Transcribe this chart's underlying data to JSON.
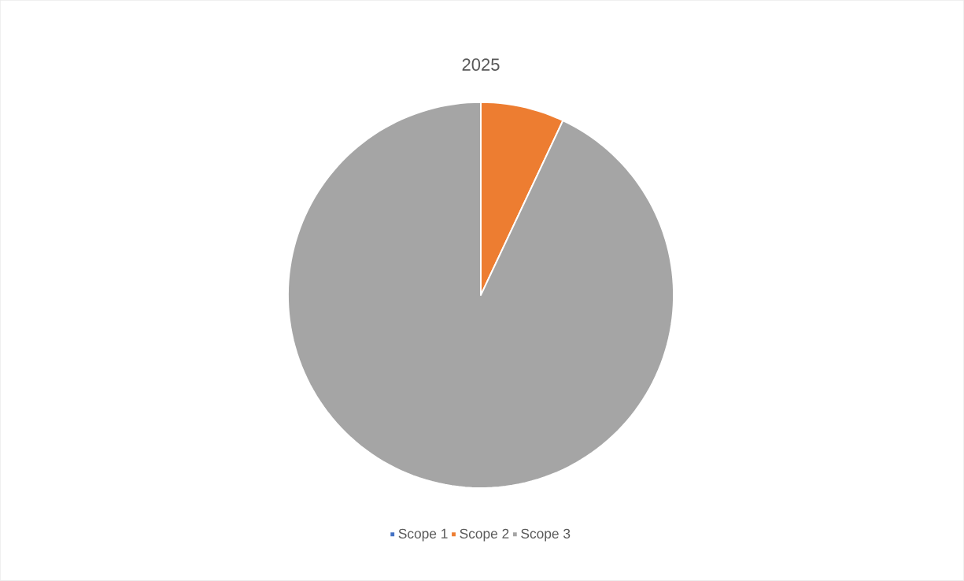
{
  "chart_data": {
    "type": "pie",
    "title": "2025",
    "categories": [
      "Scope 1",
      "Scope 2",
      "Scope 3"
    ],
    "values": [
      0,
      7,
      93
    ],
    "colors": [
      "#4472c4",
      "#ed7d31",
      "#a5a5a5"
    ],
    "legend": "bottom"
  }
}
